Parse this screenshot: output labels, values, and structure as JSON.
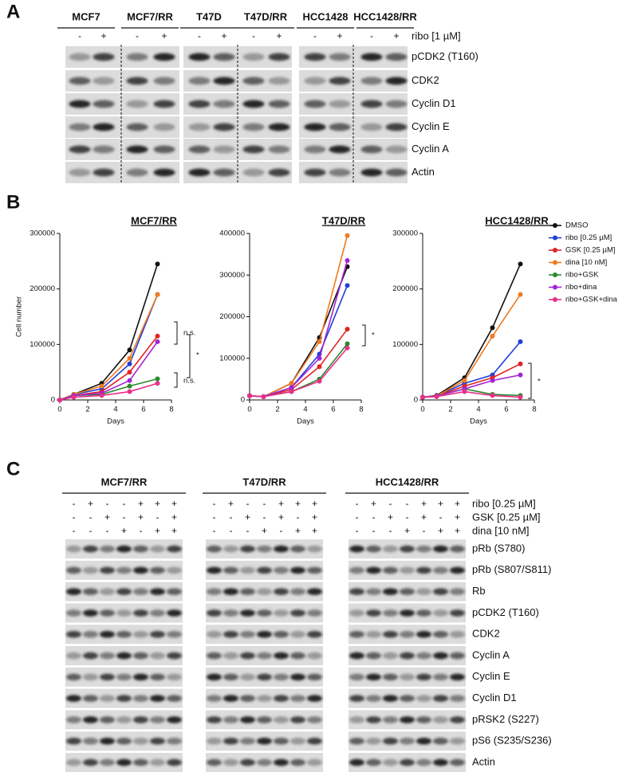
{
  "panel_a": {
    "label": "A",
    "cell_lines": [
      "MCF7",
      "MCF7/RR",
      "T47D",
      "T47D/RR",
      "HCC1428",
      "HCC1428/RR"
    ],
    "treatment_signs": [
      "-",
      "+"
    ],
    "treatment": "ribo [1 µM]",
    "proteins": [
      "pCDK2 (T160)",
      "CDK2",
      "Cyclin D1",
      "Cyclin E",
      "Cyclin A",
      "Actin"
    ]
  },
  "panel_b": {
    "label": "B"
  },
  "chart_data": [
    {
      "type": "line",
      "title": "MCF7/RR",
      "y_label": "Cell number",
      "x_label": "Days",
      "x": [
        0,
        1,
        3,
        5,
        7
      ],
      "xlim": [
        0,
        8
      ],
      "xticks": [
        0,
        2,
        4,
        6,
        8
      ],
      "ylim": [
        0,
        300000
      ],
      "yticks": [
        0,
        100000,
        200000,
        300000
      ],
      "annotations": [
        "n.s.",
        "n.s.",
        "*"
      ],
      "series": [
        {
          "name": "DMSO",
          "color": "#111111",
          "values": [
            0,
            10000,
            30000,
            90000,
            245000
          ]
        },
        {
          "name": "ribo  [0.25 µM]",
          "color": "#1f3fd6",
          "values": [
            0,
            10000,
            20000,
            65000,
            190000
          ]
        },
        {
          "name": "GSK [0.25 µM]",
          "color": "#e02424",
          "values": [
            0,
            8000,
            15000,
            50000,
            115000
          ]
        },
        {
          "name": "dina  [10 nM]",
          "color": "#f07a1e",
          "values": [
            0,
            10000,
            25000,
            75000,
            190000
          ]
        },
        {
          "name": "ribo+GSK",
          "color": "#2a8a2a",
          "values": [
            0,
            8000,
            10000,
            25000,
            38000
          ]
        },
        {
          "name": "ribo+dina",
          "color": "#a424d4",
          "values": [
            0,
            8000,
            12000,
            35000,
            105000
          ]
        },
        {
          "name": "ribo+GSK+dina",
          "color": "#e8308a",
          "values": [
            0,
            5000,
            8000,
            15000,
            30000
          ]
        }
      ]
    },
    {
      "type": "line",
      "title": "T47D/RR",
      "x_label": "Days",
      "x": [
        0,
        1,
        3,
        5,
        7
      ],
      "xlim": [
        0,
        8
      ],
      "xticks": [
        0,
        2,
        4,
        6,
        8
      ],
      "ylim": [
        0,
        400000
      ],
      "yticks": [
        0,
        100000,
        200000,
        300000,
        400000
      ],
      "annotations": [
        "*"
      ],
      "series": [
        {
          "name": "DMSO",
          "color": "#111111",
          "values": [
            10000,
            8000,
            40000,
            150000,
            320000
          ]
        },
        {
          "name": "ribo  [0.25 µM]",
          "color": "#1f3fd6",
          "values": [
            10000,
            8000,
            30000,
            110000,
            275000
          ]
        },
        {
          "name": "GSK [0.25 µM]",
          "color": "#e02424",
          "values": [
            10000,
            8000,
            25000,
            80000,
            170000
          ]
        },
        {
          "name": "dina  [10 nM]",
          "color": "#f07a1e",
          "values": [
            10000,
            8000,
            40000,
            140000,
            395000
          ]
        },
        {
          "name": "ribo+GSK",
          "color": "#2a8a2a",
          "values": [
            10000,
            8000,
            20000,
            50000,
            135000
          ]
        },
        {
          "name": "ribo+dina",
          "color": "#a424d4",
          "values": [
            10000,
            8000,
            30000,
            100000,
            335000
          ]
        },
        {
          "name": "ribo+GSK+dina",
          "color": "#e8308a",
          "values": [
            10000,
            8000,
            20000,
            45000,
            125000
          ]
        }
      ]
    },
    {
      "type": "line",
      "title": "HCC1428/RR",
      "x_label": "Days",
      "x": [
        0,
        1,
        3,
        5,
        7
      ],
      "xlim": [
        0,
        8
      ],
      "xticks": [
        0,
        2,
        4,
        6,
        8
      ],
      "ylim": [
        0,
        300000
      ],
      "yticks": [
        0,
        100000,
        200000,
        300000
      ],
      "annotations": [
        "*"
      ],
      "legend": "right",
      "series": [
        {
          "name": "DMSO",
          "color": "#111111",
          "values": [
            5000,
            8000,
            40000,
            130000,
            245000
          ]
        },
        {
          "name": "ribo  [0.25 µM]",
          "color": "#1f3fd6",
          "values": [
            5000,
            7000,
            30000,
            45000,
            105000
          ]
        },
        {
          "name": "GSK [0.25 µM]",
          "color": "#e02424",
          "values": [
            5000,
            7000,
            25000,
            40000,
            65000
          ]
        },
        {
          "name": "dina  [10 nM]",
          "color": "#f07a1e",
          "values": [
            5000,
            7000,
            35000,
            115000,
            190000
          ]
        },
        {
          "name": "ribo+GSK",
          "color": "#2a8a2a",
          "values": [
            5000,
            7000,
            20000,
            10000,
            8000
          ]
        },
        {
          "name": "ribo+dina",
          "color": "#a424d4",
          "values": [
            5000,
            7000,
            20000,
            35000,
            45000
          ]
        },
        {
          "name": "ribo+GSK+dina",
          "color": "#e8308a",
          "values": [
            5000,
            6000,
            15000,
            8000,
            5000
          ]
        }
      ]
    }
  ],
  "panel_c": {
    "label": "C",
    "cell_lines": [
      "MCF7/RR",
      "T47D/RR",
      "HCC1428/RR"
    ],
    "treatment_rows": [
      {
        "label": "ribo   [0.25 µM]",
        "signs": [
          "-",
          "+",
          "-",
          "-",
          "+",
          "+",
          "+"
        ]
      },
      {
        "label": "GSK [0.25 µM]",
        "signs": [
          "-",
          "-",
          "+",
          "-",
          "+",
          "-",
          "+"
        ]
      },
      {
        "label": "dina  [10 nM]",
        "signs": [
          "-",
          "-",
          "-",
          "+",
          "-",
          "+",
          "+"
        ]
      }
    ],
    "proteins": [
      "pRb (S780)",
      "pRb (S807/S811)",
      "Rb",
      "pCDK2 (T160)",
      "CDK2",
      "Cyclin A",
      "Cyclin E",
      "Cyclin D1",
      "pRSK2 (S227)",
      "pS6 (S235/S236)",
      "Actin"
    ]
  }
}
